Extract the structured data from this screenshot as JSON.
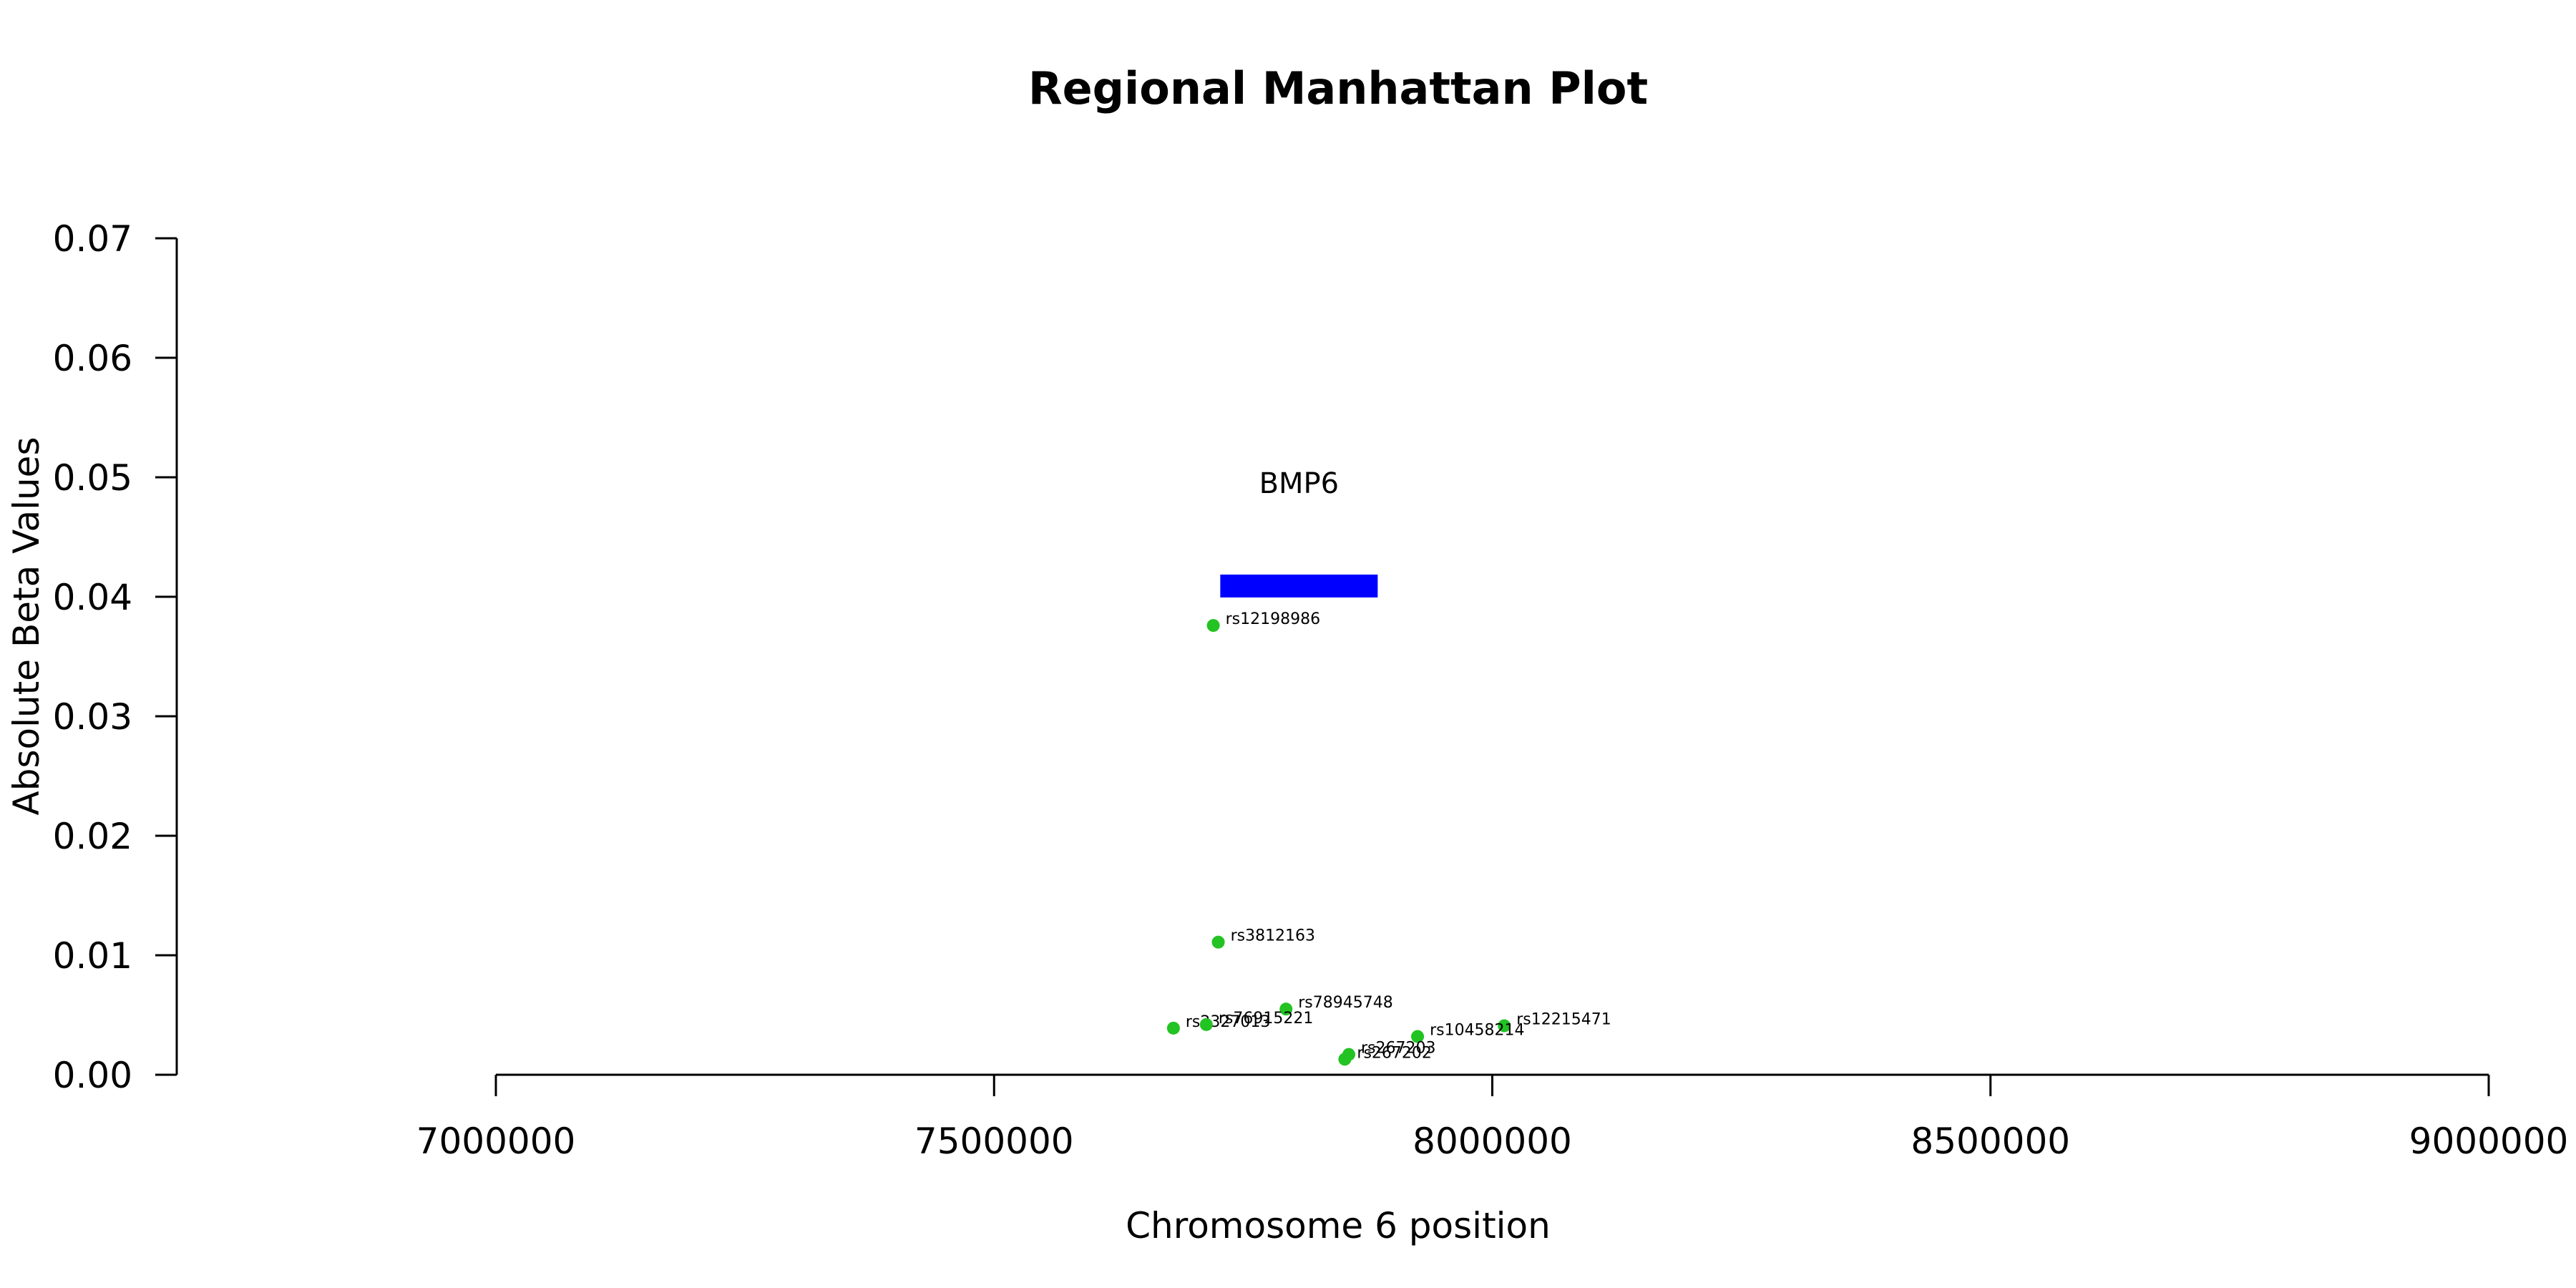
{
  "chart_data": {
    "type": "scatter",
    "title": "Regional Manhattan Plot",
    "xlabel": "Chromosome 6 position",
    "ylabel": "Absolute Beta Values",
    "xlim": [
      7000000,
      9000000
    ],
    "ylim": [
      0,
      0.07
    ],
    "x_ticks": [
      7000000,
      7500000,
      8000000,
      8500000,
      9000000
    ],
    "x_tick_labels": [
      "7000000",
      "7500000",
      "8000000",
      "8500000",
      "9000000"
    ],
    "y_ticks": [
      0,
      0.01,
      0.02,
      0.03,
      0.04,
      0.05,
      0.06,
      0.07
    ],
    "y_tick_labels": [
      "0.00",
      "0.01",
      "0.02",
      "0.03",
      "0.04",
      "0.05",
      "0.06",
      "0.07"
    ],
    "grid": false,
    "point_color": "#22c322",
    "points": [
      {
        "label": "rs12198986",
        "x": 7720000,
        "y": 0.0376
      },
      {
        "label": "rs3812163",
        "x": 7725000,
        "y": 0.0111
      },
      {
        "label": "rs78945748",
        "x": 7793000,
        "y": 0.0055
      },
      {
        "label": "rs2327013",
        "x": 7680000,
        "y": 0.0039
      },
      {
        "label": "rs76915221",
        "x": 7713000,
        "y": 0.0042
      },
      {
        "label": "rs12215471",
        "x": 8012000,
        "y": 0.0041
      },
      {
        "label": "rs10458214",
        "x": 7925000,
        "y": 0.0032
      },
      {
        "label": "rs267203",
        "x": 7856000,
        "y": 0.0017
      },
      {
        "label": "rs267202",
        "x": 7852000,
        "y": 0.0013
      }
    ],
    "genes": [
      {
        "name": "BMP6",
        "start": 7727000,
        "end": 7885000,
        "y": 0.0409,
        "color": "#0000ff"
      }
    ]
  }
}
